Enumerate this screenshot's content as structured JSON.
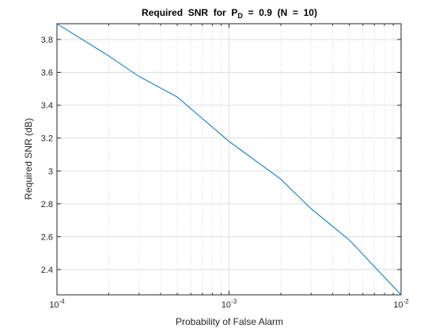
{
  "chart_data": {
    "type": "line",
    "title": "Required  SNR  for  P",
    "title_subscript": "D",
    "title_rest": "  =  0.9  (N  =  10)",
    "xlabel": "Probability of False Alarm",
    "ylabel": "Required SNR (dB)",
    "xscale": "log",
    "x": [
      0.0001,
      0.0002,
      0.0003,
      0.0005,
      0.001,
      0.002,
      0.003,
      0.005,
      0.01
    ],
    "series": [
      {
        "name": "Required SNR",
        "color": "#0072bd",
        "values": [
          3.896,
          3.7,
          3.575,
          3.45,
          3.18,
          2.95,
          2.77,
          2.58,
          2.246
        ]
      }
    ],
    "xlim": [
      0.0001,
      0.01
    ],
    "xticks": [
      {
        "value": 0.0001,
        "label": "10",
        "exponent": "-4"
      },
      {
        "value": 0.001,
        "label": "10",
        "exponent": "-3"
      },
      {
        "value": 0.01,
        "label": "10",
        "exponent": "-2"
      }
    ],
    "xminorticks": [
      0.0002,
      0.0003,
      0.0004,
      0.0005,
      0.0006,
      0.0007,
      0.0008,
      0.0009,
      0.002,
      0.003,
      0.004,
      0.005,
      0.006,
      0.007,
      0.008,
      0.009
    ],
    "ylim": [
      2.246,
      3.896
    ],
    "yticks": [
      2.4,
      2.6,
      2.8,
      3,
      3.2,
      3.4,
      3.6,
      3.8
    ],
    "grid": true
  }
}
